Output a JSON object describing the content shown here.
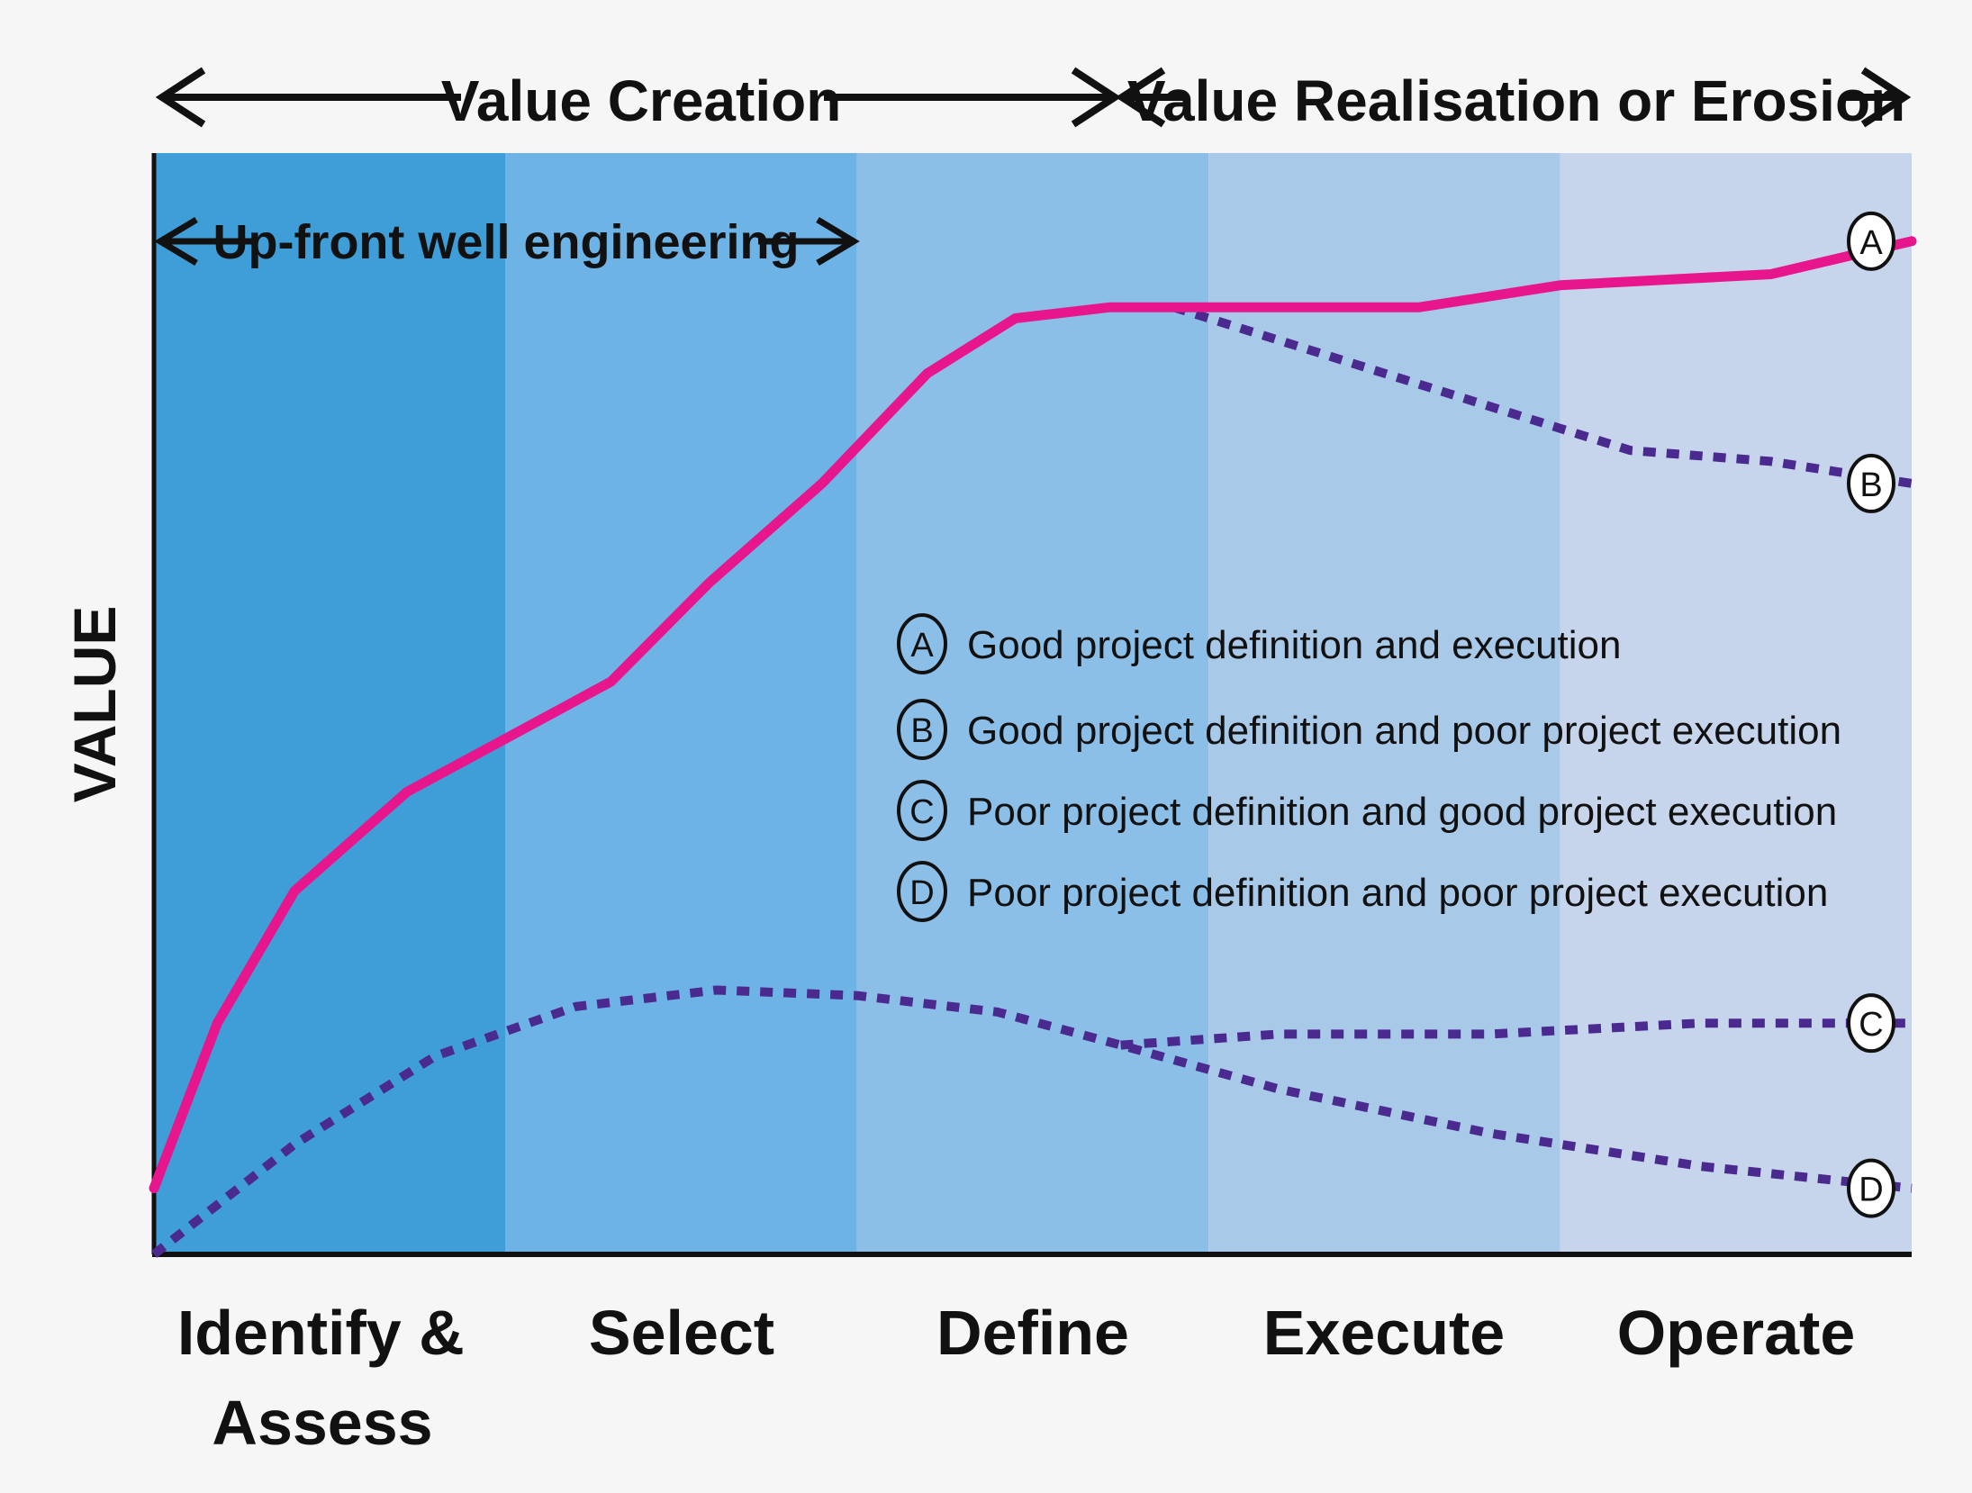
{
  "chart_data": {
    "type": "line",
    "title": "",
    "xlabel": "",
    "ylabel": "VALUE",
    "x_range": [
      0,
      5
    ],
    "y_range": [
      0,
      100
    ],
    "grid": false,
    "phases": [
      "Identify & Assess",
      "Select",
      "Define",
      "Execute",
      "Operate"
    ],
    "top_labels": {
      "value_creation": "Value Creation",
      "value_realisation": "Value Realisation or Erosion",
      "upfront": "Up-front well engineering"
    },
    "series": [
      {
        "name": "A",
        "style": "solid",
        "color": "#e8168c",
        "points": [
          [
            0,
            6
          ],
          [
            0.18,
            21
          ],
          [
            0.4,
            33
          ],
          [
            0.72,
            42
          ],
          [
            1.3,
            52
          ],
          [
            1.58,
            61
          ],
          [
            1.9,
            70
          ],
          [
            2.2,
            80
          ],
          [
            2.45,
            85
          ],
          [
            2.72,
            86
          ],
          [
            3.2,
            86
          ],
          [
            3.6,
            86
          ],
          [
            4.0,
            88
          ],
          [
            4.6,
            89
          ],
          [
            5,
            92
          ]
        ]
      },
      {
        "name": "B",
        "style": "dotted",
        "color": "#4b2a8f",
        "points": [
          [
            2.9,
            86
          ],
          [
            3.3,
            82
          ],
          [
            3.8,
            77
          ],
          [
            4.2,
            73
          ],
          [
            4.6,
            72
          ],
          [
            5,
            70
          ]
        ]
      },
      {
        "name": "C",
        "style": "dotted",
        "color": "#4b2a8f",
        "points": [
          [
            2.75,
            19
          ],
          [
            3.2,
            20
          ],
          [
            3.8,
            20
          ],
          [
            4.4,
            21
          ],
          [
            5,
            21
          ]
        ]
      },
      {
        "name": "D",
        "style": "dotted",
        "color": "#4b2a8f",
        "points": [
          [
            0,
            0
          ],
          [
            0.4,
            10
          ],
          [
            0.8,
            18
          ],
          [
            1.2,
            22.5
          ],
          [
            1.6,
            24
          ],
          [
            2.0,
            23.5
          ],
          [
            2.4,
            22
          ],
          [
            2.75,
            19
          ],
          [
            3.2,
            15
          ],
          [
            3.8,
            11
          ],
          [
            4.4,
            8
          ],
          [
            5,
            6
          ]
        ]
      }
    ],
    "legend": [
      {
        "key": "A",
        "text": "Good project definition and execution"
      },
      {
        "key": "B",
        "text": "Good project definition and poor project execution"
      },
      {
        "key": "C",
        "text": "Poor project definition and good project execution"
      },
      {
        "key": "D",
        "text": "Poor project definition and poor project execution"
      }
    ],
    "colors": {
      "bands": [
        "#3f9ed8",
        "#6db3e5",
        "#8cbfe8",
        "#a9c9e9",
        "#c6d5ec"
      ],
      "line_a": "#e8168c",
      "dotted": "#4b2a8f"
    }
  }
}
